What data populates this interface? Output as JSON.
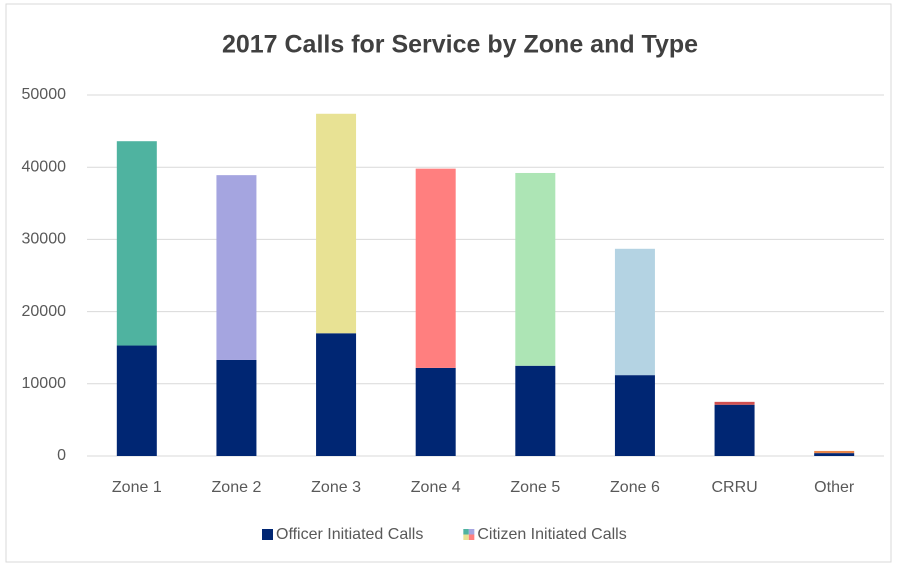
{
  "chart_data": {
    "type": "stacked_bar",
    "title": "2017 Calls for Service by Zone and Type",
    "categories": [
      "Zone 1",
      "Zone 2",
      "Zone 3",
      "Zone 4",
      "Zone 5",
      "Zone 6",
      "CRRU",
      "Other"
    ],
    "series": [
      {
        "name": "Officer Initiated Calls",
        "color": "#002673",
        "values": [
          15300,
          13300,
          17000,
          12200,
          12500,
          11200,
          7100,
          400
        ]
      },
      {
        "name": "Citizen Initiated Calls",
        "colors": [
          "#4fb3a0",
          "#a5a5e0",
          "#e8e294",
          "#ff7f7f",
          "#ade5b5",
          "#b4d3e3",
          "#d05050",
          "#e8864a"
        ],
        "values": [
          28300,
          25600,
          30400,
          27600,
          26700,
          17500,
          400,
          300
        ]
      }
    ],
    "ylim": [
      0,
      50000
    ],
    "yticks": [
      0,
      10000,
      20000,
      30000,
      40000,
      50000
    ],
    "grid": true,
    "legend": "bottom"
  }
}
